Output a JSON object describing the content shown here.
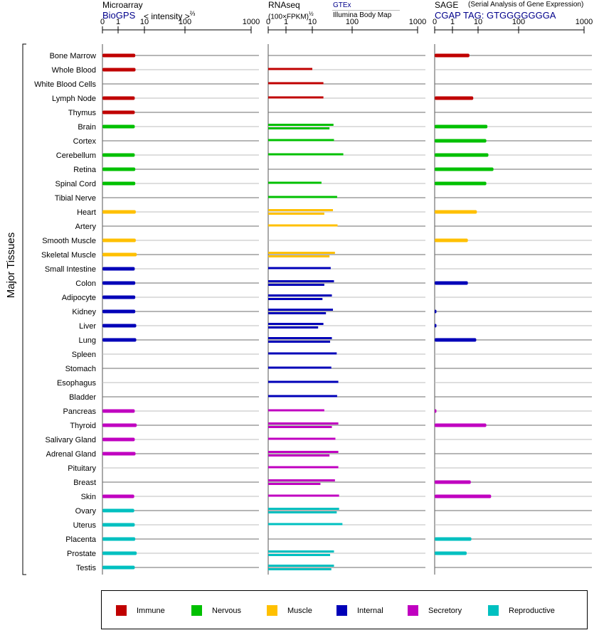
{
  "headers": {
    "microarray": {
      "title": "Microarray",
      "source": "BioGPS",
      "unit": "< intensity >",
      "unit_exp": "⅔"
    },
    "rnaseq": {
      "title": "RNAseq",
      "unit": "(100×FPKM)",
      "unit_exp": "½",
      "source_gtex": "GTEx",
      "source_ibm": "Illumina Body Map"
    },
    "sage": {
      "title": "SAGE",
      "subtitle": "(Serial Analysis of Gene Expression)",
      "tag": "CGAP TAG: GTGGGGGGGA"
    }
  },
  "y_group_label": "Major Tissues",
  "colors": {
    "Immune": "#c00000",
    "Nervous": "#00c000",
    "Muscle": "#ffc000",
    "Internal": "#0000b8",
    "Secretory": "#c000c0",
    "Reproductive": "#00c0c0"
  },
  "legend": [
    "Immune",
    "Nervous",
    "Muscle",
    "Internal",
    "Secretory",
    "Reproductive"
  ],
  "chart_data": {
    "type": "bar",
    "orientation": "horizontal",
    "x_scale": "nonlinear (ticks at 0, 1, 10, 100, 1000)",
    "x_ticks": [
      "0",
      "1",
      "10",
      "100",
      "1000"
    ],
    "categories": [
      "Bone Marrow",
      "Whole Blood",
      "White Blood Cells",
      "Lymph Node",
      "Thymus",
      "Brain",
      "Cortex",
      "Cerebellum",
      "Retina",
      "Spinal Cord",
      "Tibial Nerve",
      "Heart",
      "Artery",
      "Smooth Muscle",
      "Skeletal Muscle",
      "Small Intestine",
      "Colon",
      "Adipocyte",
      "Kidney",
      "Liver",
      "Lung",
      "Spleen",
      "Stomach",
      "Esophagus",
      "Bladder",
      "Pancreas",
      "Thyroid",
      "Salivary Gland",
      "Adrenal Gland",
      "Pituitary",
      "Breast",
      "Skin",
      "Ovary",
      "Uterus",
      "Placenta",
      "Prostate",
      "Testis"
    ],
    "groups": [
      "Immune",
      "Immune",
      "Immune",
      "Immune",
      "Immune",
      "Nervous",
      "Nervous",
      "Nervous",
      "Nervous",
      "Nervous",
      "Nervous",
      "Muscle",
      "Muscle",
      "Muscle",
      "Muscle",
      "Internal",
      "Internal",
      "Internal",
      "Internal",
      "Internal",
      "Internal",
      "Internal",
      "Internal",
      "Internal",
      "Internal",
      "Secretory",
      "Secretory",
      "Secretory",
      "Secretory",
      "Secretory",
      "Secretory",
      "Secretory",
      "Reproductive",
      "Reproductive",
      "Reproductive",
      "Reproductive",
      "Reproductive"
    ],
    "series": [
      {
        "name": "Microarray",
        "values": [
          4.5,
          4.6,
          null,
          4.3,
          4.3,
          4.3,
          null,
          4.3,
          4.5,
          4.5,
          null,
          4.7,
          null,
          4.7,
          5.1,
          4.3,
          4.5,
          4.5,
          4.5,
          4.9,
          4.9,
          null,
          null,
          null,
          null,
          4.3,
          5.1,
          4.3,
          4.6,
          null,
          null,
          4.1,
          4.1,
          4.3,
          4.5,
          5.1,
          4.3
        ]
      },
      {
        "name": "GTEx",
        "values": [
          null,
          10,
          19,
          19,
          null,
          34,
          35,
          60,
          null,
          17,
          42,
          33,
          43,
          null,
          37,
          29,
          35,
          31,
          33,
          19,
          31,
          41,
          30,
          45,
          42,
          20,
          45,
          38,
          45,
          45,
          37,
          47,
          47,
          57,
          null,
          35,
          35
        ]
      },
      {
        "name": "Illumina Body Map",
        "values": [
          null,
          null,
          null,
          null,
          null,
          27,
          null,
          null,
          null,
          null,
          null,
          20,
          null,
          null,
          27,
          null,
          20,
          18,
          22,
          14,
          28,
          null,
          null,
          null,
          null,
          null,
          31,
          null,
          27,
          null,
          16,
          null,
          41,
          null,
          null,
          28,
          30
        ]
      },
      {
        "name": "SAGE",
        "values": [
          4.6,
          null,
          null,
          6.5,
          null,
          17,
          16,
          18,
          24,
          16,
          null,
          9,
          null,
          4,
          null,
          null,
          4,
          null,
          0.1,
          0.1,
          8.5,
          null,
          null,
          null,
          null,
          0.1,
          16,
          null,
          null,
          null,
          5.2,
          21,
          null,
          null,
          5.5,
          3.6,
          null
        ]
      }
    ]
  }
}
